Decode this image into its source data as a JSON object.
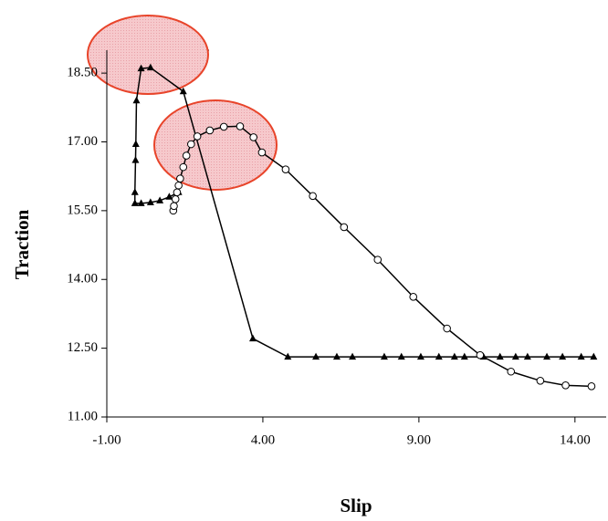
{
  "chart_data": {
    "type": "scatter",
    "x_label": "Slip",
    "y_label": "Traction",
    "xlim": [
      -1,
      15
    ],
    "ylim": [
      11,
      19
    ],
    "xticks": [
      {
        "value": -1,
        "label": "-1.00"
      },
      {
        "value": 4,
        "label": "4.00"
      },
      {
        "value": 9,
        "label": "9.00"
      },
      {
        "value": 14,
        "label": "14.00"
      }
    ],
    "yticks": [
      {
        "value": 11,
        "label": "11.00"
      },
      {
        "value": 12.5,
        "label": "12.50"
      },
      {
        "value": 14,
        "label": "14.00"
      },
      {
        "value": 15.5,
        "label": "15.50"
      },
      {
        "value": 17,
        "label": "17.00"
      },
      {
        "value": 18.5,
        "label": "18.50"
      }
    ],
    "series": [
      {
        "marker": "triangle",
        "color": "#000000",
        "x": [
          1.3,
          1.0,
          0.7,
          0.4,
          0.1,
          -0.1,
          -0.1,
          -0.08,
          -0.07,
          -0.05,
          0.1,
          0.4,
          1.45,
          3.68,
          4.8,
          5.7,
          6.37,
          6.87,
          7.89,
          8.44,
          9.06,
          9.64,
          10.14,
          10.46,
          11.07,
          11.6,
          12.1,
          12.48,
          13.1,
          13.6,
          14.2,
          14.6
        ],
        "values": [
          15.9,
          15.8,
          15.72,
          15.68,
          15.66,
          15.66,
          15.9,
          16.6,
          16.95,
          17.9,
          18.6,
          18.62,
          18.1,
          12.71,
          12.31,
          12.31,
          12.31,
          12.31,
          12.31,
          12.31,
          12.31,
          12.31,
          12.31,
          12.31,
          12.31,
          12.31,
          12.31,
          12.31,
          12.31,
          12.31,
          12.31,
          12.31
        ]
      },
      {
        "marker": "circle",
        "color": "#000000",
        "x": [
          1.13,
          1.15,
          1.2,
          1.25,
          1.3,
          1.35,
          1.45,
          1.55,
          1.7,
          1.9,
          2.3,
          2.75,
          3.27,
          3.7,
          3.97,
          4.73,
          5.6,
          6.6,
          7.68,
          8.82,
          9.9,
          10.96,
          11.95,
          12.89,
          13.7,
          14.53
        ],
        "values": [
          15.5,
          15.6,
          15.75,
          15.9,
          16.05,
          16.2,
          16.45,
          16.7,
          16.95,
          17.12,
          17.25,
          17.33,
          17.34,
          17.1,
          16.77,
          16.4,
          15.82,
          15.14,
          14.43,
          13.62,
          12.93,
          12.35,
          11.99,
          11.79,
          11.69,
          11.67
        ]
      }
    ]
  }
}
